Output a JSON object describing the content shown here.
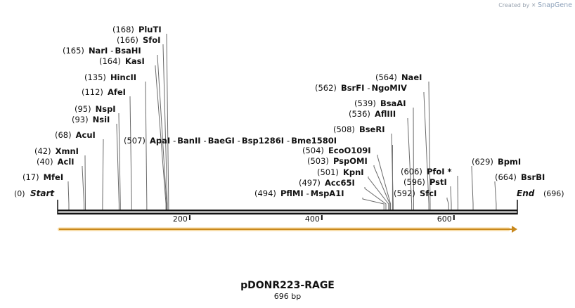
{
  "watermark": {
    "prefix": "Created by",
    "brand": "SnapGene"
  },
  "sequence": {
    "name": "pDONR223-RAGE",
    "length_label": "696 bp",
    "length": 696
  },
  "ends": {
    "start_label": "Start",
    "start_pos": "(0)",
    "end_label": "End",
    "end_pos": "(696)"
  },
  "axis": {
    "ticks": [
      "200",
      "400",
      "600"
    ]
  },
  "feature": {
    "name": "ORF arrow",
    "start": 0,
    "end": 696,
    "color": "#f0a830"
  },
  "sites": [
    {
      "pos": "(168)",
      "names": [
        "PluTI"
      ]
    },
    {
      "pos": "(166)",
      "names": [
        "SfoI"
      ]
    },
    {
      "pos": "(165)",
      "names": [
        "NarI",
        "BsaHI"
      ]
    },
    {
      "pos": "(164)",
      "names": [
        "KasI"
      ]
    },
    {
      "pos": "(135)",
      "names": [
        "HincII"
      ]
    },
    {
      "pos": "(112)",
      "names": [
        "AfeI"
      ]
    },
    {
      "pos": "(95)",
      "names": [
        "NspI"
      ]
    },
    {
      "pos": "(93)",
      "names": [
        "NsiI"
      ]
    },
    {
      "pos": "(68)",
      "names": [
        "AcuI"
      ]
    },
    {
      "pos": "(42)",
      "names": [
        "XmnI"
      ]
    },
    {
      "pos": "(40)",
      "names": [
        "AclI"
      ]
    },
    {
      "pos": "(17)",
      "names": [
        "MfeI"
      ]
    },
    {
      "pos": "(507)",
      "names": [
        "ApaI",
        "BanII",
        "BaeGI",
        "Bsp1286I",
        "Bme1580I"
      ]
    },
    {
      "pos": "(564)",
      "names": [
        "NaeI"
      ]
    },
    {
      "pos": "(562)",
      "names": [
        "BsrFI",
        "NgoMIV"
      ]
    },
    {
      "pos": "(539)",
      "names": [
        "BsaAI"
      ]
    },
    {
      "pos": "(536)",
      "names": [
        "AflIII"
      ]
    },
    {
      "pos": "(508)",
      "names": [
        "BseRI"
      ]
    },
    {
      "pos": "(504)",
      "names": [
        "EcoO109I"
      ]
    },
    {
      "pos": "(503)",
      "names": [
        "PspOMI"
      ]
    },
    {
      "pos": "(501)",
      "names": [
        "KpnI"
      ]
    },
    {
      "pos": "(497)",
      "names": [
        "Acc65I"
      ]
    },
    {
      "pos": "(494)",
      "names": [
        "PflMI",
        "MspA1I"
      ]
    },
    {
      "pos": "(606)",
      "names": [
        "PfoI *"
      ]
    },
    {
      "pos": "(596)",
      "names": [
        "PstI"
      ]
    },
    {
      "pos": "(592)",
      "names": [
        "SfcI"
      ]
    },
    {
      "pos": "(629)",
      "names": [
        "BpmI"
      ]
    },
    {
      "pos": "(664)",
      "names": [
        "BsrBI"
      ]
    }
  ]
}
